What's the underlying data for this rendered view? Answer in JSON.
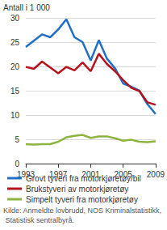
{
  "chart_data": {
    "type": "line",
    "ylabel": "Antall i 1 000",
    "x": [
      1993,
      1994,
      1995,
      1996,
      1997,
      1998,
      1999,
      2000,
      2001,
      2002,
      2003,
      2004,
      2005,
      2006,
      2007,
      2008,
      2009
    ],
    "series": [
      {
        "name": "Grovt tyveri fra motorkjøretøy/bil",
        "color": "#1f6fc5",
        "values": [
          24.0,
          25.3,
          26.6,
          26.0,
          27.6,
          29.7,
          26.0,
          25.0,
          21.2,
          25.4,
          21.6,
          19.6,
          16.5,
          15.8,
          15.0,
          12.2,
          10.2
        ]
      },
      {
        "name": "Brukstyveri av motorkjøretøy",
        "color": "#b5121b",
        "values": [
          19.9,
          19.5,
          21.0,
          19.8,
          18.6,
          19.9,
          19.2,
          20.8,
          19.0,
          22.6,
          20.5,
          19.0,
          17.2,
          15.6,
          14.9,
          12.6,
          12.1
        ]
      },
      {
        "name": "Simpelt tyveri fra motorkjøretøy",
        "color": "#8db43e",
        "values": [
          4.0,
          3.9,
          4.0,
          4.0,
          4.5,
          5.4,
          5.7,
          5.9,
          5.3,
          5.6,
          5.6,
          5.2,
          4.7,
          4.9,
          4.5,
          4.4,
          4.6
        ]
      }
    ],
    "xlim": [
      1993,
      2009
    ],
    "xticks": [
      1993,
      1997,
      2001,
      2005,
      2009
    ],
    "ylim": [
      0,
      30
    ],
    "yticks": [
      0,
      5,
      10,
      15,
      20,
      25,
      30
    ],
    "grid": true,
    "legend": "bottom",
    "source": "Kilde: Anmeldte lovbrudd, NOS Kriminalstatistikk, Statistisk sentralbyrå."
  }
}
